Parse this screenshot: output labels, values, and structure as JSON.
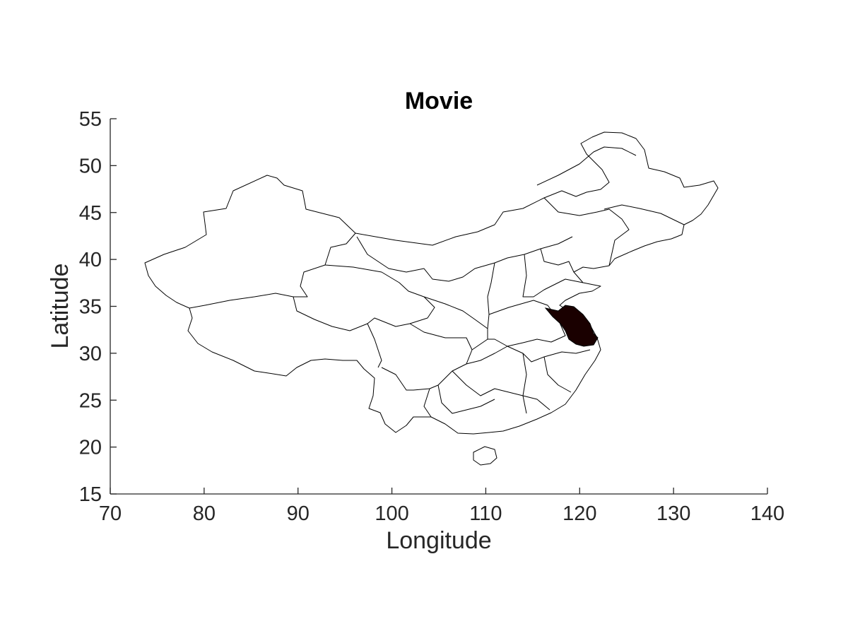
{
  "chart_data": {
    "type": "map",
    "title": "Movie",
    "xlabel": "Longitude",
    "ylabel": "Latitude",
    "xlim": [
      70,
      140
    ],
    "ylim": [
      15,
      55
    ],
    "xticks": [
      70,
      80,
      90,
      100,
      110,
      120,
      130,
      140
    ],
    "yticks": [
      15,
      20,
      25,
      30,
      35,
      40,
      45,
      50,
      55
    ],
    "highlighted_region_color": "#1a0000",
    "region_fill_color": "#ffffff",
    "boundary_color": "#000000"
  }
}
